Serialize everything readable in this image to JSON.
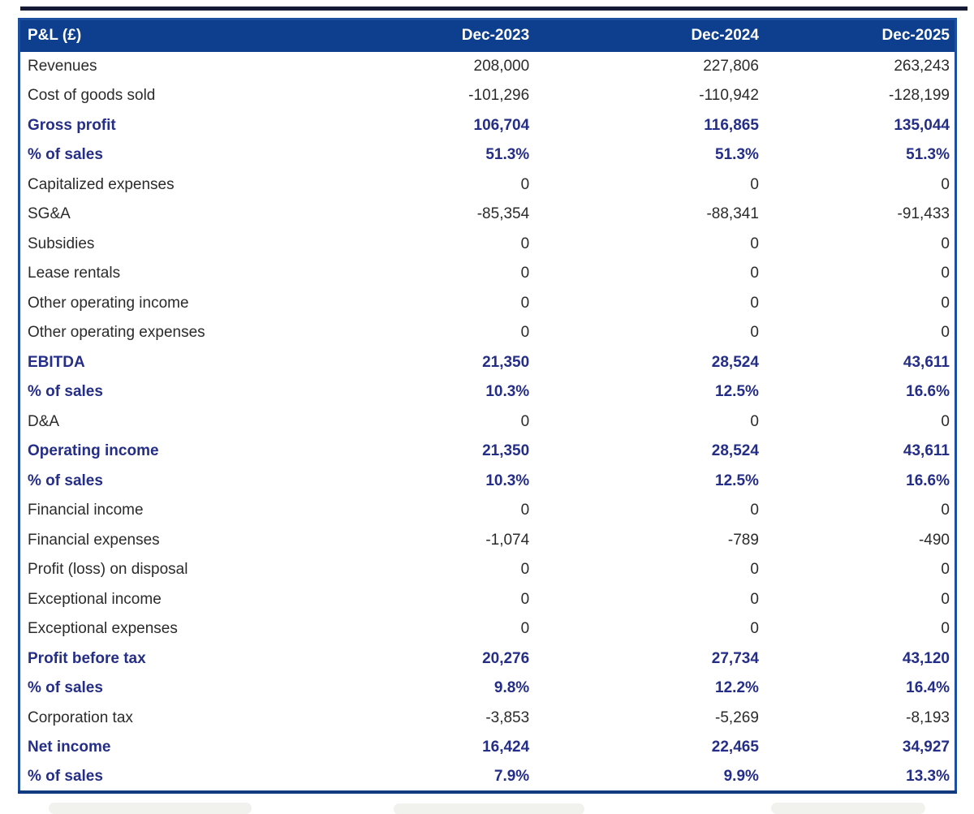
{
  "table": {
    "title_column_header": "P&L (£)",
    "columns": [
      "Dec-2023",
      "Dec-2024",
      "Dec-2025"
    ],
    "rows": [
      {
        "label": "Revenues",
        "values": [
          "208,000",
          "227,806",
          "263,243"
        ],
        "emphasis": false
      },
      {
        "label": "Cost of goods sold",
        "values": [
          "-101,296",
          "-110,942",
          "-128,199"
        ],
        "emphasis": false
      },
      {
        "label": "Gross profit",
        "values": [
          "106,704",
          "116,865",
          "135,044"
        ],
        "emphasis": true
      },
      {
        "label": "% of sales",
        "values": [
          "51.3%",
          "51.3%",
          "51.3%"
        ],
        "emphasis": true
      },
      {
        "label": "Capitalized expenses",
        "values": [
          "0",
          "0",
          "0"
        ],
        "emphasis": false
      },
      {
        "label": "SG&A",
        "values": [
          "-85,354",
          "-88,341",
          "-91,433"
        ],
        "emphasis": false
      },
      {
        "label": "Subsidies",
        "values": [
          "0",
          "0",
          "0"
        ],
        "emphasis": false
      },
      {
        "label": "Lease rentals",
        "values": [
          "0",
          "0",
          "0"
        ],
        "emphasis": false
      },
      {
        "label": "Other operating income",
        "values": [
          "0",
          "0",
          "0"
        ],
        "emphasis": false
      },
      {
        "label": "Other operating expenses",
        "values": [
          "0",
          "0",
          "0"
        ],
        "emphasis": false
      },
      {
        "label": "EBITDA",
        "values": [
          "21,350",
          "28,524",
          "43,611"
        ],
        "emphasis": true
      },
      {
        "label": "% of sales",
        "values": [
          "10.3%",
          "12.5%",
          "16.6%"
        ],
        "emphasis": true
      },
      {
        "label": "D&A",
        "values": [
          "0",
          "0",
          "0"
        ],
        "emphasis": false
      },
      {
        "label": "Operating income",
        "values": [
          "21,350",
          "28,524",
          "43,611"
        ],
        "emphasis": true
      },
      {
        "label": "% of sales",
        "values": [
          "10.3%",
          "12.5%",
          "16.6%"
        ],
        "emphasis": true
      },
      {
        "label": "Financial income",
        "values": [
          "0",
          "0",
          "0"
        ],
        "emphasis": false
      },
      {
        "label": "Financial expenses",
        "values": [
          "-1,074",
          "-789",
          "-490"
        ],
        "emphasis": false
      },
      {
        "label": "Profit (loss) on disposal",
        "values": [
          "0",
          "0",
          "0"
        ],
        "emphasis": false
      },
      {
        "label": "Exceptional income",
        "values": [
          "0",
          "0",
          "0"
        ],
        "emphasis": false
      },
      {
        "label": "Exceptional expenses",
        "values": [
          "0",
          "0",
          "0"
        ],
        "emphasis": false
      },
      {
        "label": "Profit before tax",
        "values": [
          "20,276",
          "27,734",
          "43,120"
        ],
        "emphasis": true
      },
      {
        "label": "% of sales",
        "values": [
          "9.8%",
          "12.2%",
          "16.4%"
        ],
        "emphasis": true
      },
      {
        "label": "Corporation tax",
        "values": [
          "-3,853",
          "-5,269",
          "-8,193"
        ],
        "emphasis": false
      },
      {
        "label": "Net income",
        "values": [
          "16,424",
          "22,465",
          "34,927"
        ],
        "emphasis": true
      },
      {
        "label": "% of sales",
        "values": [
          "7.9%",
          "9.9%",
          "13.3%"
        ],
        "emphasis": true
      }
    ]
  },
  "colors": {
    "header_bg": "#0d3f8e",
    "header_text": "#ffffff",
    "emphasis_text": "#252e87",
    "body_text": "#2b2b2b",
    "table_border": "#1c4f9f",
    "top_rule": "#151b36"
  }
}
